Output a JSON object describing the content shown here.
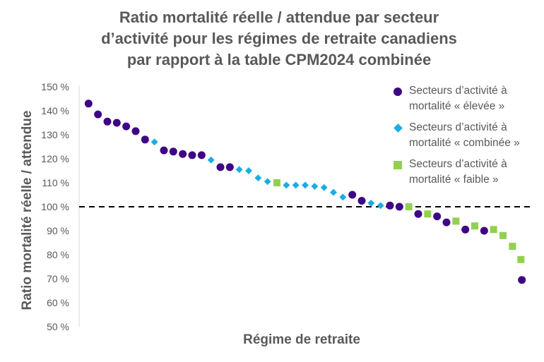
{
  "chart_data": {
    "type": "scatter",
    "title_lines": [
      "Ratio mortalité réelle / attendue par secteur",
      "d’activité pour les régimes de retraite canadiens",
      "par rapport à la table CPM2024 combinée"
    ],
    "xlabel": "Régime de retraite",
    "ylabel": "Ratio mortalité réelle / attendue",
    "ylim": [
      50,
      150
    ],
    "yticks": [
      "50 %",
      "60 %",
      "70 %",
      "80 %",
      "90 %",
      "100 %",
      "110 %",
      "120 %",
      "130 %",
      "140 %",
      "150 %"
    ],
    "reference_line": 100,
    "xlim": [
      0,
      48
    ],
    "legend_placement": "right",
    "series": [
      {
        "name_lines": [
          "Secteurs d’activité à",
          "mortalité « élevée »"
        ],
        "marker": "circle",
        "color": "#3E0586",
        "x": [
          1,
          2,
          3,
          4,
          5,
          6,
          7,
          9,
          10,
          11,
          12,
          13,
          15,
          16,
          29,
          30,
          33,
          34,
          36,
          38,
          39,
          41,
          43,
          47
        ],
        "y": [
          143,
          138.5,
          135.5,
          135,
          133.5,
          131.5,
          128,
          123.5,
          123,
          122,
          121.5,
          121.5,
          116.5,
          116.5,
          105,
          102.5,
          100.5,
          100,
          97,
          96,
          93.5,
          90.5,
          90,
          69.5
        ]
      },
      {
        "name_lines": [
          "Secteurs d’activité à",
          "mortalité « combinée »"
        ],
        "marker": "diamond",
        "color": "#1AADE4",
        "x": [
          8,
          14,
          17,
          18,
          19,
          20,
          22,
          23,
          24,
          25,
          26,
          27,
          28,
          31,
          32
        ],
        "y": [
          127,
          119.5,
          115.5,
          115,
          112,
          110.5,
          109,
          109,
          109,
          108.5,
          108,
          106,
          104,
          101.5,
          100.5
        ]
      },
      {
        "name_lines": [
          "Secteurs d’activité à",
          "mortalité « faible »"
        ],
        "marker": "square",
        "color": "#92D050",
        "x": [
          21,
          35,
          37,
          40,
          42,
          44,
          45,
          46,
          46.9
        ],
        "y": [
          110,
          100,
          97,
          94,
          92,
          90.5,
          88,
          83.5,
          78
        ]
      }
    ]
  }
}
